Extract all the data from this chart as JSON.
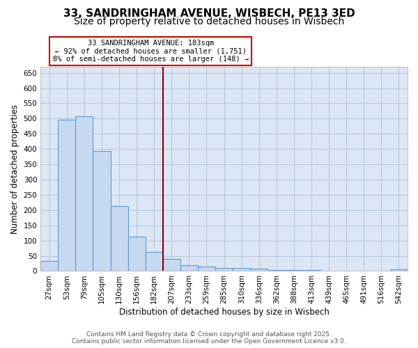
{
  "title1": "33, SANDRINGHAM AVENUE, WISBECH, PE13 3ED",
  "title2": "Size of property relative to detached houses in Wisbech",
  "xlabel": "Distribution of detached houses by size in Wisbech",
  "ylabel": "Number of detached properties",
  "categories": [
    "27sqm",
    "53sqm",
    "79sqm",
    "105sqm",
    "130sqm",
    "156sqm",
    "182sqm",
    "207sqm",
    "233sqm",
    "259sqm",
    "285sqm",
    "310sqm",
    "336sqm",
    "362sqm",
    "388sqm",
    "413sqm",
    "439sqm",
    "465sqm",
    "491sqm",
    "516sqm",
    "542sqm"
  ],
  "values": [
    33,
    496,
    507,
    393,
    213,
    112,
    62,
    40,
    20,
    15,
    10,
    10,
    8,
    4,
    3,
    3,
    1,
    1,
    1,
    1,
    5
  ],
  "bar_color": "#c6d9f0",
  "bar_edge_color": "#5b9bd5",
  "property_line_index": 6,
  "property_line_color": "#8b0000",
  "annotation_text": "33 SANDRINGHAM AVENUE: 183sqm\n← 92% of detached houses are smaller (1,751)\n8% of semi-detached houses are larger (148) →",
  "annotation_box_color": "#ffffff",
  "annotation_box_edge_color": "#cc0000",
  "ylim": [
    0,
    670
  ],
  "yticks": [
    0,
    50,
    100,
    150,
    200,
    250,
    300,
    350,
    400,
    450,
    500,
    550,
    600,
    650
  ],
  "background_color": "#ffffff",
  "plot_bg_color": "#dce6f5",
  "grid_color": "#b8c8d8",
  "footer_line1": "Contains HM Land Registry data © Crown copyright and database right 2025.",
  "footer_line2": "Contains public sector information licensed under the Open Government Licence v3.0.",
  "title_fontsize": 11,
  "subtitle_fontsize": 10,
  "axis_label_fontsize": 8.5,
  "tick_fontsize": 7.5,
  "annotation_fontsize": 7.5,
  "footer_fontsize": 6.5
}
